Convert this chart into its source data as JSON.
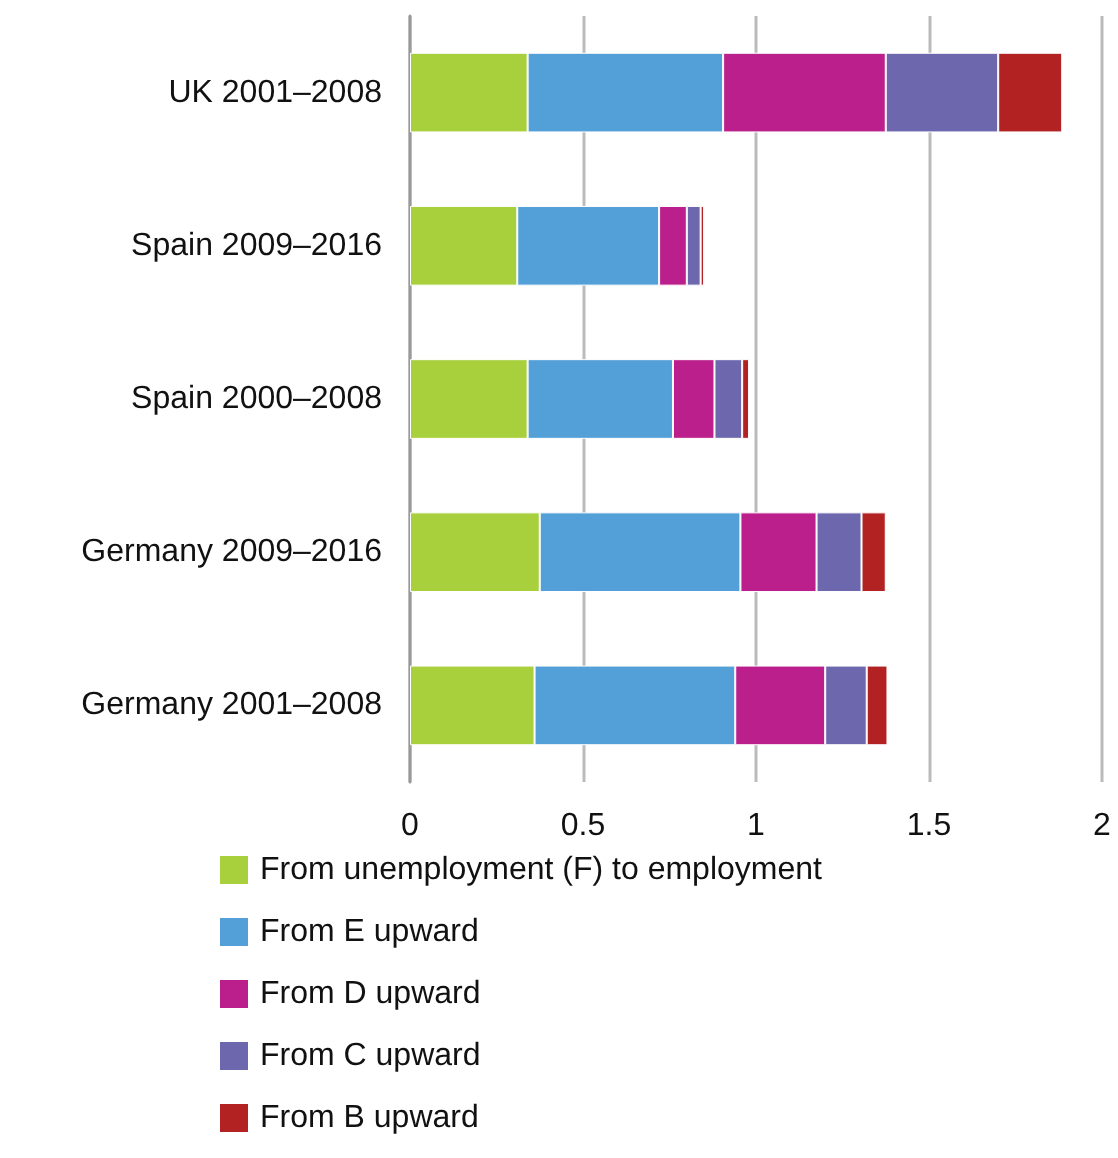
{
  "chart_data": {
    "type": "bar",
    "orientation": "horizontal",
    "stacked": true,
    "categories": [
      "UK 2001–2008",
      "Spain 2009–2016",
      "Spain 2000–2008",
      "Germany 2009–2016",
      "Germany 2001–2008"
    ],
    "series": [
      {
        "name": "From unemployment (F) to employment",
        "color": "#a8cf3c",
        "values": [
          0.34,
          0.31,
          0.34,
          0.375,
          0.36
        ]
      },
      {
        "name": "From E upward",
        "color": "#539fd7",
        "values": [
          0.565,
          0.41,
          0.42,
          0.58,
          0.58
        ]
      },
      {
        "name": "From D upward",
        "color": "#bb1f8c",
        "values": [
          0.47,
          0.08,
          0.12,
          0.22,
          0.26
        ]
      },
      {
        "name": "From C upward",
        "color": "#6d68ae",
        "values": [
          0.325,
          0.04,
          0.08,
          0.13,
          0.12
        ]
      },
      {
        "name": "From B upward",
        "color": "#b22222",
        "values": [
          0.185,
          0.01,
          0.02,
          0.07,
          0.06
        ]
      }
    ],
    "xlim": [
      0,
      2
    ],
    "xticks": [
      0,
      0.5,
      1,
      1.5,
      2
    ],
    "grid": "x",
    "legend": "bottom"
  }
}
